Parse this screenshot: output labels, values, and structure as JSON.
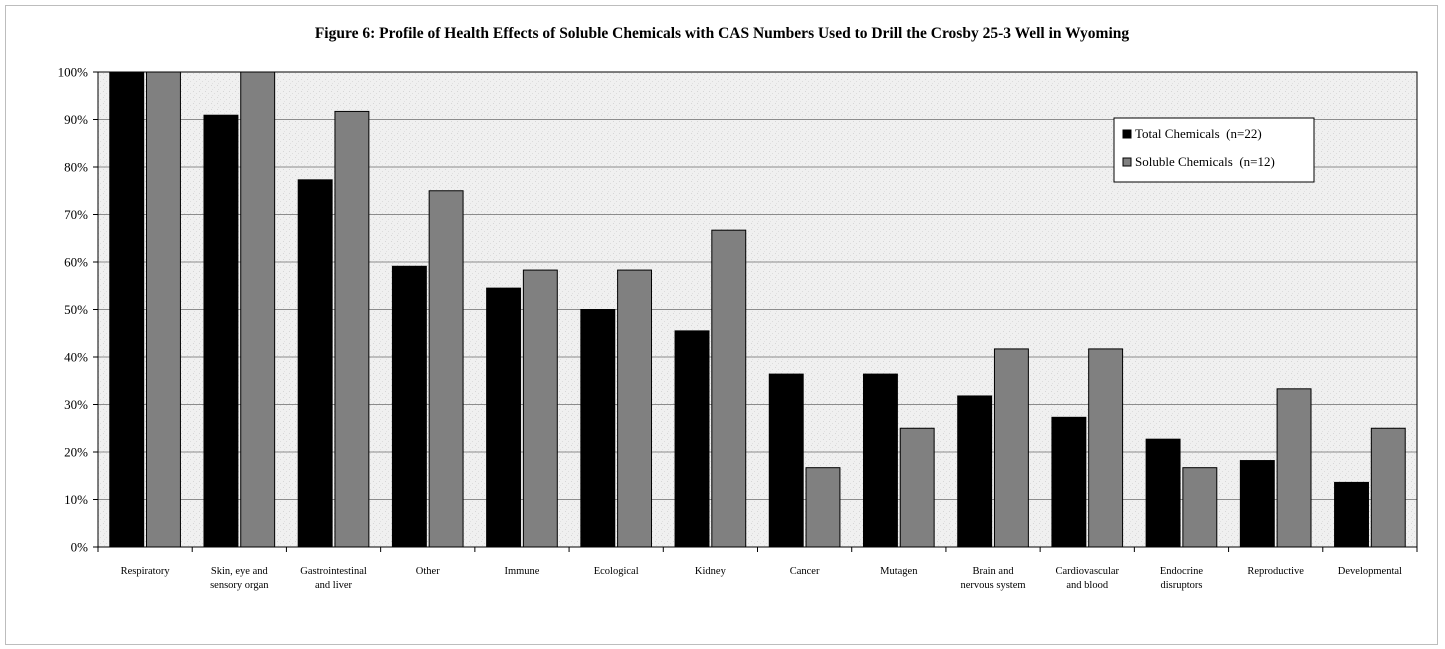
{
  "chart_data": {
    "type": "bar",
    "title": "Figure 6: Profile of Health Effects of Soluble Chemicals with CAS Numbers Used to Drill the Crosby 25-3 Well in Wyoming",
    "categories": [
      [
        "Respiratory"
      ],
      [
        "Skin, eye and",
        "sensory organ"
      ],
      [
        "Gastrointestinal",
        "and liver"
      ],
      [
        "Other"
      ],
      [
        "Immune"
      ],
      [
        "Ecological"
      ],
      [
        "Kidney"
      ],
      [
        "Cancer"
      ],
      [
        "Mutagen"
      ],
      [
        "Brain and",
        "nervous system"
      ],
      [
        "Cardiovascular",
        "and blood"
      ],
      [
        "Endocrine",
        "disruptors"
      ],
      [
        "Reproductive"
      ],
      [
        "Developmental"
      ]
    ],
    "series": [
      {
        "name": "Total Chemicals  (n=22)",
        "color": "#000000",
        "values": [
          100,
          90.9,
          77.3,
          59.1,
          54.5,
          50.0,
          45.5,
          36.4,
          36.4,
          31.8,
          27.3,
          22.7,
          18.2,
          13.6
        ]
      },
      {
        "name": "Soluble Chemicals  (n=12)",
        "color": "#808080",
        "values": [
          100,
          100,
          91.7,
          75.0,
          58.3,
          58.3,
          66.7,
          16.7,
          25.0,
          41.7,
          41.7,
          16.7,
          33.3,
          25.0
        ]
      }
    ],
    "yticks": [
      "0%",
      "10%",
      "20%",
      "30%",
      "40%",
      "50%",
      "60%",
      "70%",
      "80%",
      "90%",
      "100%"
    ],
    "ylim": [
      0,
      100
    ],
    "xlabel": "",
    "ylabel": "",
    "grid": true,
    "legend_position": "top-right"
  }
}
